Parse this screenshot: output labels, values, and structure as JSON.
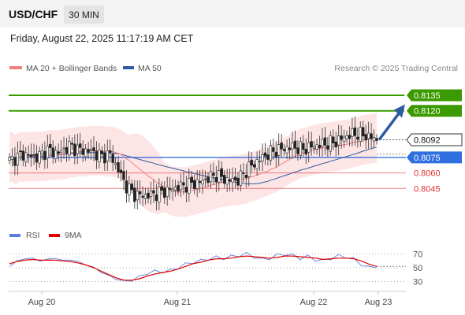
{
  "header": {
    "symbol": "USD/CHF",
    "timeframe": "30 MIN",
    "datetime": "Friday, August 22, 2025 11:17:19 AM CET"
  },
  "legend": {
    "ma20_label": "MA 20 + Bollinger Bands",
    "ma50_label": "MA 50",
    "copyright": "Research © 2025 Trading Central",
    "ma20_color": "#f08080",
    "ma50_color": "#2d5aa0"
  },
  "rsi_legend": {
    "rsi_label": "RSI",
    "ma_label": "9MA",
    "rsi_color": "#5b7fe0",
    "ma_color": "#e00000"
  },
  "chart_data": [
    {
      "type": "candlestick",
      "title": "",
      "x_labels": [
        "Aug 20",
        "Aug 21",
        "Aug 22",
        "Aug 23"
      ],
      "ylim": [
        0.8011,
        0.8154
      ],
      "current_price": 0.8092,
      "levels": [
        {
          "value": 0.8135,
          "label": "0.8135",
          "kind": "resistance",
          "color": "#3a9a00"
        },
        {
          "value": 0.812,
          "label": "0.8120",
          "kind": "resistance",
          "color": "#3a9a00"
        },
        {
          "value": 0.8075,
          "label": "0.8075",
          "kind": "pivot",
          "color": "#2f6fe0"
        },
        {
          "value": 0.806,
          "label": "0.8060",
          "kind": "support",
          "color": "#e03030"
        },
        {
          "value": 0.8045,
          "label": "0.8045",
          "kind": "support",
          "color": "#e03030"
        }
      ],
      "arrow": {
        "from": 0.8093,
        "to": 0.8124
      },
      "close_anchors": [
        [
          0,
          0.8072
        ],
        [
          5,
          0.8078
        ],
        [
          10,
          0.8075
        ],
        [
          14,
          0.8082
        ],
        [
          18,
          0.8079
        ],
        [
          22,
          0.8086
        ],
        [
          26,
          0.8082
        ],
        [
          30,
          0.8081
        ],
        [
          34,
          0.8076
        ],
        [
          37,
          0.8078
        ],
        [
          40,
          0.8063
        ],
        [
          43,
          0.8047
        ],
        [
          46,
          0.8039
        ],
        [
          50,
          0.8038
        ],
        [
          54,
          0.804
        ],
        [
          58,
          0.8043
        ],
        [
          62,
          0.8046
        ],
        [
          66,
          0.8049
        ],
        [
          70,
          0.8051
        ],
        [
          73,
          0.8055
        ],
        [
          76,
          0.8058
        ],
        [
          80,
          0.8053
        ],
        [
          84,
          0.8053
        ],
        [
          88,
          0.8065
        ],
        [
          92,
          0.8073
        ],
        [
          96,
          0.808
        ],
        [
          100,
          0.8083
        ],
        [
          104,
          0.8085
        ],
        [
          108,
          0.8083
        ],
        [
          112,
          0.8086
        ],
        [
          116,
          0.8088
        ],
        [
          120,
          0.809
        ],
        [
          124,
          0.8096
        ],
        [
          128,
          0.8098
        ],
        [
          132,
          0.8095
        ],
        [
          135,
          0.8092
        ]
      ]
    },
    {
      "type": "line",
      "title": "",
      "ylim": [
        18,
        82
      ],
      "y_ticks": [
        70,
        50,
        30
      ],
      "series": [
        {
          "name": "RSI",
          "values": [
            52,
            60,
            63,
            64,
            60,
            62,
            64,
            60,
            62,
            58,
            55,
            50,
            44,
            38,
            34,
            30,
            32,
            37,
            42,
            45,
            44,
            46,
            50,
            55,
            58,
            60,
            63,
            65,
            64,
            66,
            68,
            70,
            66,
            62,
            64,
            68,
            70,
            68,
            64,
            66,
            62,
            60,
            64,
            67,
            66,
            62,
            55,
            50,
            52
          ]
        },
        {
          "name": "9MA",
          "values": [
            56,
            59,
            61,
            62,
            61,
            61,
            61,
            60,
            59,
            57,
            54,
            50,
            45,
            40,
            35,
            32,
            32,
            34,
            38,
            41,
            43,
            45,
            48,
            52,
            56,
            58,
            61,
            63,
            63,
            64,
            66,
            67,
            66,
            65,
            64,
            65,
            67,
            67,
            66,
            65,
            64,
            62,
            63,
            64,
            64,
            63,
            60,
            55,
            52
          ]
        }
      ]
    }
  ]
}
